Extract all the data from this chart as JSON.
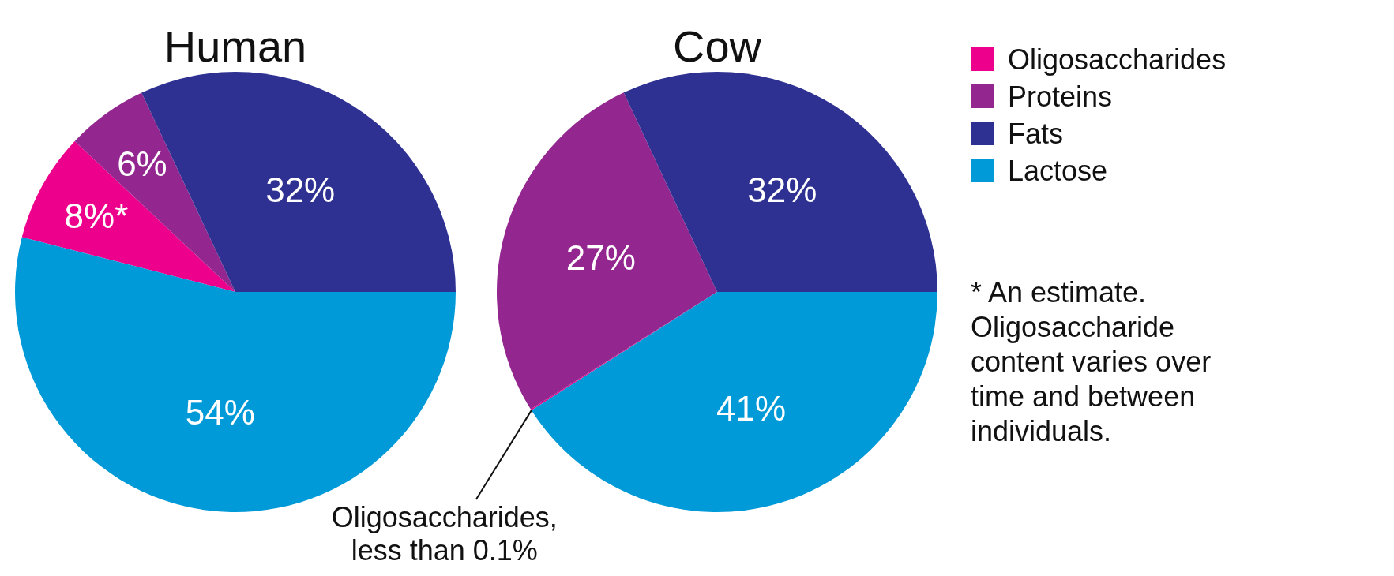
{
  "chart_data": {
    "type": "pie",
    "categories": [
      "Oligosaccharides",
      "Proteins",
      "Fats",
      "Lactose"
    ],
    "colors": [
      "#ec008c",
      "#93278f",
      "#2e3192",
      "#009ad8"
    ],
    "legend": "right",
    "series": [
      {
        "name": "Human",
        "values": [
          8,
          6,
          32,
          54
        ],
        "value_labels": [
          "8%*",
          "6%",
          "32%",
          "54%"
        ]
      },
      {
        "name": "Cow",
        "values": [
          0.1,
          27,
          32,
          41
        ],
        "value_labels": [
          null,
          "27%",
          "32%",
          "41%"
        ]
      }
    ],
    "annotations": [
      {
        "text": "Oligosaccharides, less than 0.1%",
        "x": "Oligosaccharides"
      },
      "* An estimate. Oligosaccharide content varies over time and between individuals."
    ]
  }
}
